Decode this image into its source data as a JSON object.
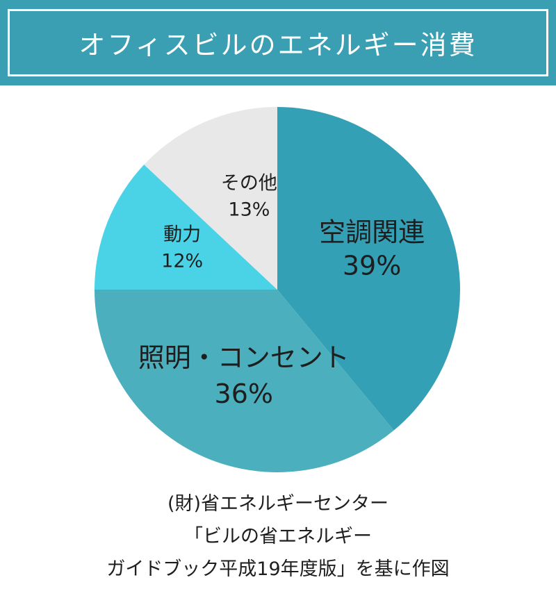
{
  "title": "オフィスビルのエネルギー消費",
  "colors": {
    "banner": "#3a9fb3",
    "banner_text": "#ffffff"
  },
  "chart_data": {
    "type": "pie",
    "title": "オフィスビルのエネルギー消費",
    "start": "12 o'clock",
    "direction": "clockwise",
    "slices": [
      {
        "label": "空調関連",
        "value": 39,
        "value_text": "39%",
        "color": "#34a0b5"
      },
      {
        "label": "照明・コンセント",
        "value": 36,
        "value_text": "36%",
        "color": "#4bafbd"
      },
      {
        "label": "動力",
        "value": 12,
        "value_text": "12%",
        "color": "#4ad3e6"
      },
      {
        "label": "その他",
        "value": 13,
        "value_text": "13%",
        "color": "#e8e8e8"
      }
    ]
  },
  "source": {
    "line1": "(財)省エネルギーセンター",
    "line2": "「ビルの省エネルギー",
    "line3": "ガイドブック平成19年度版」を基に作図"
  }
}
